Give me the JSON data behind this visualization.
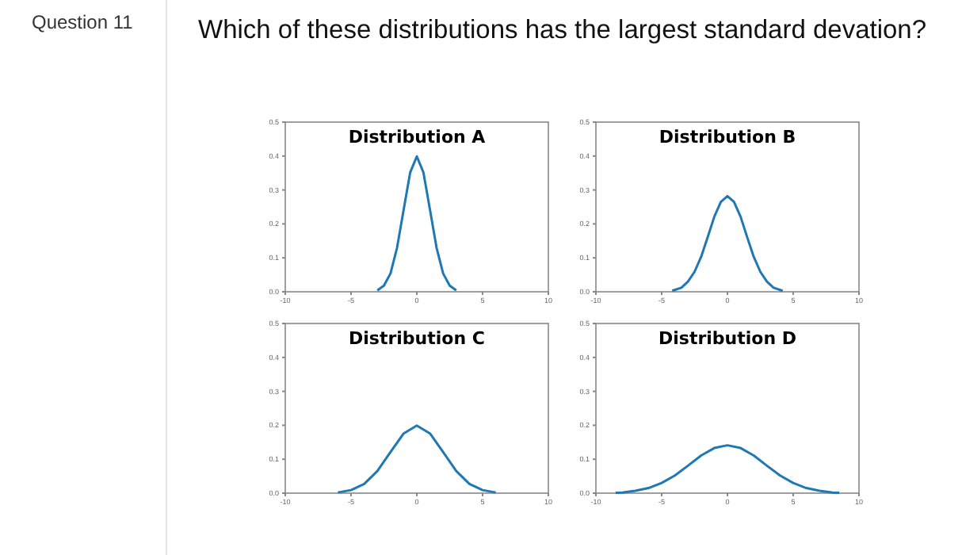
{
  "chart_data": [
    {
      "type": "other",
      "title": "Which of these distributions has the largest standard devation?",
      "annotations": [
        "Question 11"
      ]
    },
    {
      "type": "line",
      "title": "Distribution A",
      "xlim": [
        -10,
        10
      ],
      "ylim": [
        0,
        0.5
      ],
      "xticks": [
        -10,
        -5,
        0,
        5,
        10
      ],
      "yticks": [
        {
          "value": 0,
          "label": "0.0"
        },
        {
          "value": 0.1,
          "label": "0.1"
        },
        {
          "value": 0.2,
          "label": "0.2"
        },
        {
          "value": 0.3,
          "label": "0.3"
        },
        {
          "value": 0.4,
          "label": "0.4"
        },
        {
          "value": 0.5,
          "label": "0.5"
        }
      ],
      "grid": false,
      "series": [
        {
          "color": "#1f77b4",
          "x": [
            -3,
            -2.5,
            -2,
            -1.5,
            -1,
            -0.5,
            0,
            0.5,
            1,
            1.5,
            2,
            2.5,
            3
          ],
          "values": [
            0.004,
            0.018,
            0.054,
            0.13,
            0.242,
            0.352,
            0.399,
            0.352,
            0.242,
            0.13,
            0.054,
            0.018,
            0.004
          ]
        }
      ]
    },
    {
      "type": "line",
      "title": "Distribution B",
      "xlim": [
        -10,
        10
      ],
      "ylim": [
        0,
        0.5
      ],
      "xticks": [
        -10,
        -5,
        0,
        5,
        10
      ],
      "yticks": [
        {
          "value": 0,
          "label": "0.0"
        },
        {
          "value": 0.1,
          "label": "0.1"
        },
        {
          "value": 0.2,
          "label": "0.2"
        },
        {
          "value": 0.3,
          "label": "0.3"
        },
        {
          "value": 0.4,
          "label": "0.4"
        },
        {
          "value": 0.5,
          "label": "0.5"
        }
      ],
      "grid": false,
      "series": [
        {
          "color": "#1f77b4",
          "x": [
            -4.2,
            -3.5,
            -3,
            -2.5,
            -2,
            -1.5,
            -1,
            -0.5,
            0,
            0.5,
            1,
            1.5,
            2,
            2.5,
            3,
            3.5,
            4.2
          ],
          "values": [
            0.003,
            0.012,
            0.03,
            0.059,
            0.103,
            0.161,
            0.221,
            0.265,
            0.282,
            0.265,
            0.221,
            0.161,
            0.103,
            0.059,
            0.03,
            0.012,
            0.003
          ]
        }
      ]
    },
    {
      "type": "line",
      "title": "Distribution C",
      "xlim": [
        -10,
        10
      ],
      "ylim": [
        0,
        0.5
      ],
      "xticks": [
        -10,
        -5,
        0,
        5,
        10
      ],
      "yticks": [
        {
          "value": 0,
          "label": "0.0"
        },
        {
          "value": 0.1,
          "label": "0.1"
        },
        {
          "value": 0.2,
          "label": "0.2"
        },
        {
          "value": 0.3,
          "label": "0.3"
        },
        {
          "value": 0.4,
          "label": "0.4"
        },
        {
          "value": 0.5,
          "label": "0.5"
        }
      ],
      "grid": false,
      "series": [
        {
          "color": "#1f77b4",
          "x": [
            -6,
            -5,
            -4,
            -3,
            -2,
            -1,
            0,
            1,
            2,
            3,
            4,
            5,
            6
          ],
          "values": [
            0.002,
            0.009,
            0.027,
            0.065,
            0.121,
            0.176,
            0.199,
            0.176,
            0.121,
            0.065,
            0.027,
            0.009,
            0.002
          ]
        }
      ]
    },
    {
      "type": "line",
      "title": "Distribution D",
      "xlim": [
        -10,
        10
      ],
      "ylim": [
        0,
        0.5
      ],
      "xticks": [
        -10,
        -5,
        0,
        5,
        10
      ],
      "yticks": [
        {
          "value": 0,
          "label": "0.0"
        },
        {
          "value": 0.1,
          "label": "0.1"
        },
        {
          "value": 0.2,
          "label": "0.2"
        },
        {
          "value": 0.3,
          "label": "0.3"
        },
        {
          "value": 0.4,
          "label": "0.4"
        },
        {
          "value": 0.5,
          "label": "0.5"
        }
      ],
      "grid": false,
      "series": [
        {
          "color": "#1f77b4",
          "x": [
            -8.5,
            -8,
            -7,
            -6,
            -5,
            -4,
            -3,
            -2,
            -1,
            0,
            1,
            2,
            3,
            4,
            5,
            6,
            7,
            8,
            8.5
          ],
          "values": [
            0.001,
            0.002,
            0.007,
            0.015,
            0.03,
            0.052,
            0.081,
            0.111,
            0.133,
            0.141,
            0.133,
            0.111,
            0.081,
            0.052,
            0.03,
            0.015,
            0.007,
            0.002,
            0.001
          ]
        }
      ]
    }
  ]
}
